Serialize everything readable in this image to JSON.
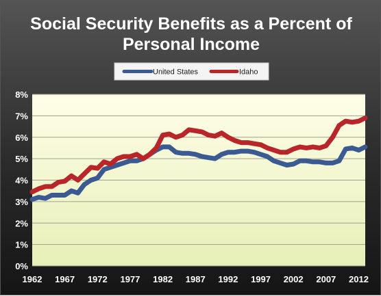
{
  "chart_data": {
    "type": "line",
    "title_lines": [
      "Social Security Benefits as a Percent of",
      "Personal Income"
    ],
    "xlabel": "",
    "ylabel": "",
    "x": [
      1962,
      1963,
      1964,
      1965,
      1966,
      1967,
      1968,
      1969,
      1970,
      1971,
      1972,
      1973,
      1974,
      1975,
      1976,
      1977,
      1978,
      1979,
      1980,
      1981,
      1982,
      1983,
      1984,
      1985,
      1986,
      1987,
      1988,
      1989,
      1990,
      1991,
      1992,
      1993,
      1994,
      1995,
      1996,
      1997,
      1998,
      1999,
      2000,
      2001,
      2002,
      2003,
      2004,
      2005,
      2006,
      2007,
      2008,
      2009,
      2010,
      2011,
      2012,
      2013
    ],
    "xticks": [
      "1962",
      "1967",
      "1972",
      "1977",
      "1982",
      "1987",
      "1992",
      "1997",
      "2002",
      "2007",
      "2012"
    ],
    "xlim": [
      1962,
      2013
    ],
    "yticks": [
      "0%",
      "1%",
      "2%",
      "3%",
      "4%",
      "5%",
      "6%",
      "7%",
      "8%"
    ],
    "ylim": [
      0,
      8
    ],
    "grid": true,
    "legend_position": "top-center",
    "series": [
      {
        "name": "United States",
        "color": "#3b5a92",
        "values": [
          3.1,
          3.2,
          3.15,
          3.3,
          3.3,
          3.3,
          3.5,
          3.4,
          3.8,
          4.0,
          4.1,
          4.5,
          4.6,
          4.7,
          4.8,
          4.9,
          4.9,
          5.0,
          5.2,
          5.4,
          5.55,
          5.55,
          5.3,
          5.25,
          5.25,
          5.2,
          5.1,
          5.05,
          5.0,
          5.2,
          5.3,
          5.3,
          5.35,
          5.35,
          5.3,
          5.2,
          5.1,
          4.9,
          4.8,
          4.7,
          4.75,
          4.9,
          4.9,
          4.85,
          4.85,
          4.8,
          4.8,
          4.9,
          5.45,
          5.5,
          5.4,
          5.55
        ]
      },
      {
        "name": "Idaho",
        "color": "#b8262a",
        "values": [
          3.45,
          3.6,
          3.7,
          3.7,
          3.9,
          3.95,
          4.2,
          4.0,
          4.3,
          4.6,
          4.55,
          4.85,
          4.75,
          5.0,
          5.1,
          5.1,
          5.2,
          5.0,
          5.2,
          5.5,
          6.1,
          6.15,
          6.0,
          6.1,
          6.35,
          6.3,
          6.25,
          6.1,
          6.05,
          6.2,
          6.0,
          5.85,
          5.75,
          5.75,
          5.7,
          5.65,
          5.5,
          5.4,
          5.3,
          5.3,
          5.45,
          5.55,
          5.5,
          5.55,
          5.5,
          5.6,
          6.0,
          6.55,
          6.75,
          6.7,
          6.75,
          6.9
        ]
      }
    ]
  },
  "colors": {
    "plot_top": "#fefee8",
    "plot_bottom": "#e7efb8",
    "legend_bg": "#f4f4f4",
    "gridline": "#a0a090"
  }
}
